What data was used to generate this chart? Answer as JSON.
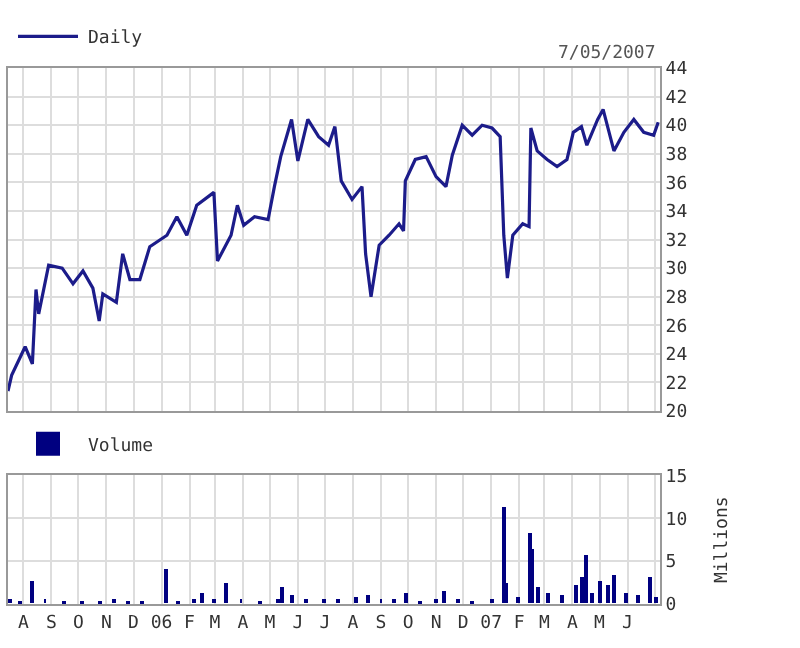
{
  "chart_data": [
    {
      "type": "line",
      "legend": "top left",
      "grid": true,
      "tick_labels": "y",
      "marker": "none",
      "line_style": "solid",
      "annotations": [
        "7/05/2007"
      ],
      "xlim": [
        "2005-07-15",
        "2007-07-07"
      ],
      "xticks": [
        {
          "value": "2005-08-01",
          "label": null
        },
        {
          "value": "2005-09-01",
          "label": null
        },
        {
          "value": "2005-10-01",
          "label": null
        },
        {
          "value": "2005-11-01",
          "label": null
        },
        {
          "value": "2005-12-01",
          "label": null
        },
        {
          "value": "2006-01-01",
          "label": null
        },
        {
          "value": "2006-02-01",
          "label": null
        },
        {
          "value": "2006-03-01",
          "label": null
        },
        {
          "value": "2006-04-01",
          "label": null
        },
        {
          "value": "2006-05-01",
          "label": null
        },
        {
          "value": "2006-06-01",
          "label": null
        },
        {
          "value": "2006-07-01",
          "label": null
        },
        {
          "value": "2006-08-01",
          "label": null
        },
        {
          "value": "2006-09-01",
          "label": null
        },
        {
          "value": "2006-10-01",
          "label": null
        },
        {
          "value": "2006-11-01",
          "label": null
        },
        {
          "value": "2006-12-01",
          "label": null
        },
        {
          "value": "2007-01-01",
          "label": null
        },
        {
          "value": "2007-02-01",
          "label": null
        },
        {
          "value": "2007-03-01",
          "label": null
        },
        {
          "value": "2007-04-01",
          "label": null
        },
        {
          "value": "2007-05-01",
          "label": null
        },
        {
          "value": "2007-06-01",
          "label": null
        },
        {
          "value": "2007-07-01",
          "label": null
        }
      ],
      "ylim": [
        20,
        44
      ],
      "yticks": [
        20,
        22,
        24,
        26,
        28,
        30,
        32,
        34,
        36,
        38,
        40,
        42,
        44
      ],
      "x": [
        "2005-07-15",
        "2005-07-19",
        "2005-08-03",
        "2005-08-11",
        "2005-08-15",
        "2005-08-18",
        "2005-08-29",
        "2005-09-13",
        "2005-09-25",
        "2005-10-06",
        "2005-10-17",
        "2005-10-24",
        "2005-10-28",
        "2005-11-12",
        "2005-11-19",
        "2005-11-27",
        "2005-12-08",
        "2005-12-19",
        "2006-01-07",
        "2006-01-18",
        "2006-01-29",
        "2006-02-09",
        "2006-02-28",
        "2006-03-04",
        "2006-03-19",
        "2006-03-26",
        "2006-04-02",
        "2006-04-14",
        "2006-04-29",
        "2006-05-06",
        "2006-05-13",
        "2006-05-25",
        "2006-06-01",
        "2006-06-12",
        "2006-06-24",
        "2006-07-05",
        "2006-07-12",
        "2006-07-19",
        "2006-07-31",
        "2006-08-11",
        "2006-08-15",
        "2006-08-21",
        "2006-08-30",
        "2006-09-10",
        "2006-09-21",
        "2006-09-26",
        "2006-09-28",
        "2006-10-09",
        "2006-10-21",
        "2006-11-01",
        "2006-11-12",
        "2006-11-19",
        "2006-11-30",
        "2006-12-11",
        "2006-12-22",
        "2007-01-02",
        "2007-01-11",
        "2007-01-15",
        "2007-01-19",
        "2007-01-25",
        "2007-02-05",
        "2007-02-12",
        "2007-02-14",
        "2007-02-21",
        "2007-03-04",
        "2007-03-15",
        "2007-03-26",
        "2007-04-02",
        "2007-04-11",
        "2007-04-17",
        "2007-04-29",
        "2007-05-05",
        "2007-05-17",
        "2007-05-28",
        "2007-06-08",
        "2007-06-19",
        "2007-06-30",
        "2007-07-05"
      ],
      "series": [
        {
          "name": "Daily",
          "color": "#1c1c8a",
          "values": [
            21.4,
            22.5,
            24.5,
            23.3,
            28.5,
            26.8,
            30.2,
            30,
            28.9,
            29.8,
            28.6,
            26.3,
            28.2,
            27.6,
            31,
            29.2,
            29.2,
            31.5,
            32.3,
            33.6,
            32.3,
            34.4,
            35.3,
            30.5,
            32.3,
            34.4,
            33,
            33.6,
            33.4,
            35.7,
            37.8,
            40.4,
            37.5,
            40.4,
            39.2,
            38.6,
            39.9,
            36.1,
            34.8,
            35.7,
            31,
            28,
            31.6,
            32.3,
            33.1,
            32.6,
            36.1,
            37.6,
            37.8,
            36.4,
            35.7,
            37.9,
            40,
            39.3,
            40,
            39.8,
            39.2,
            32.3,
            29.3,
            32.3,
            33.1,
            32.9,
            39.8,
            38.2,
            37.6,
            37.1,
            37.6,
            39.5,
            39.9,
            38.6,
            40.4,
            41.1,
            38.2,
            39.5,
            40.4,
            39.5,
            39.3,
            40.2
          ]
        }
      ]
    },
    {
      "type": "bar",
      "legend": "top left",
      "grid": true,
      "ylabel": "Millions",
      "xlim": [
        "2005-07-15",
        "2007-07-07"
      ],
      "xticks": [
        {
          "value": "2005-08-01",
          "label": "A"
        },
        {
          "value": "2005-09-01",
          "label": "S"
        },
        {
          "value": "2005-10-01",
          "label": "O"
        },
        {
          "value": "2005-11-01",
          "label": "N"
        },
        {
          "value": "2005-12-01",
          "label": "D"
        },
        {
          "value": "2006-01-01",
          "label": "06"
        },
        {
          "value": "2006-02-01",
          "label": "F"
        },
        {
          "value": "2006-03-01",
          "label": "M"
        },
        {
          "value": "2006-04-01",
          "label": "A"
        },
        {
          "value": "2006-05-01",
          "label": "M"
        },
        {
          "value": "2006-06-01",
          "label": "J"
        },
        {
          "value": "2006-07-01",
          "label": "J"
        },
        {
          "value": "2006-08-01",
          "label": "A"
        },
        {
          "value": "2006-09-01",
          "label": "S"
        },
        {
          "value": "2006-10-01",
          "label": "O"
        },
        {
          "value": "2006-11-01",
          "label": "N"
        },
        {
          "value": "2006-12-01",
          "label": "D"
        },
        {
          "value": "2007-01-01",
          "label": "07"
        },
        {
          "value": "2007-02-01",
          "label": "F"
        },
        {
          "value": "2007-03-01",
          "label": "M"
        },
        {
          "value": "2007-04-01",
          "label": "A"
        },
        {
          "value": "2007-05-01",
          "label": "M"
        },
        {
          "value": "2007-06-01",
          "label": "J"
        },
        {
          "value": "2007-07-01",
          "label": null
        }
      ],
      "ylim": [
        0,
        15
      ],
      "yticks": [
        0,
        5,
        10,
        15
      ],
      "x": [
        "2005-07-18",
        "2005-07-28",
        "2005-08-10",
        "2005-08-25",
        "2005-09-15",
        "2005-10-05",
        "2005-10-25",
        "2005-11-10",
        "2005-11-25",
        "2005-12-10",
        "2006-01-05",
        "2006-01-20",
        "2006-02-05",
        "2006-02-15",
        "2006-03-01",
        "2006-03-14",
        "2006-03-30",
        "2006-04-20",
        "2006-05-10",
        "2006-05-15",
        "2006-05-25",
        "2006-06-10",
        "2006-06-30",
        "2006-07-15",
        "2006-08-05",
        "2006-08-18",
        "2006-09-01",
        "2006-09-15",
        "2006-09-28",
        "2006-10-15",
        "2006-11-01",
        "2006-11-10",
        "2006-11-25",
        "2006-12-10",
        "2007-01-02",
        "2007-01-15",
        "2007-01-17",
        "2007-01-30",
        "2007-02-13",
        "2007-02-15",
        "2007-02-22",
        "2007-03-05",
        "2007-03-20",
        "2007-04-05",
        "2007-04-12",
        "2007-04-16",
        "2007-04-23",
        "2007-05-01",
        "2007-05-10",
        "2007-05-18",
        "2007-05-30",
        "2007-06-12",
        "2007-06-25",
        "2007-07-03"
      ],
      "series": [
        {
          "name": "Volume",
          "color": "#000080",
          "values": [
            0.6,
            0.4,
            2.7,
            0.5,
            0.3,
            0.3,
            0.3,
            0.6,
            0.3,
            0.4,
            4.1,
            0.4,
            0.5,
            1.2,
            0.5,
            2.3,
            0.5,
            0.2,
            0.6,
            2.0,
            1.0,
            0.6,
            0.5,
            0.6,
            0.8,
            1.1,
            0.6,
            0.5,
            1.2,
            0.4,
            0.5,
            1.5,
            0.6,
            0.4,
            0.5,
            11.2,
            2.5,
            0.8,
            8.3,
            6.4,
            2.0,
            1.2,
            1.0,
            2.2,
            3.0,
            5.6,
            1.2,
            2.7,
            2.2,
            3.3,
            1.2,
            1.0,
            3.0,
            0.8
          ]
        }
      ]
    }
  ]
}
